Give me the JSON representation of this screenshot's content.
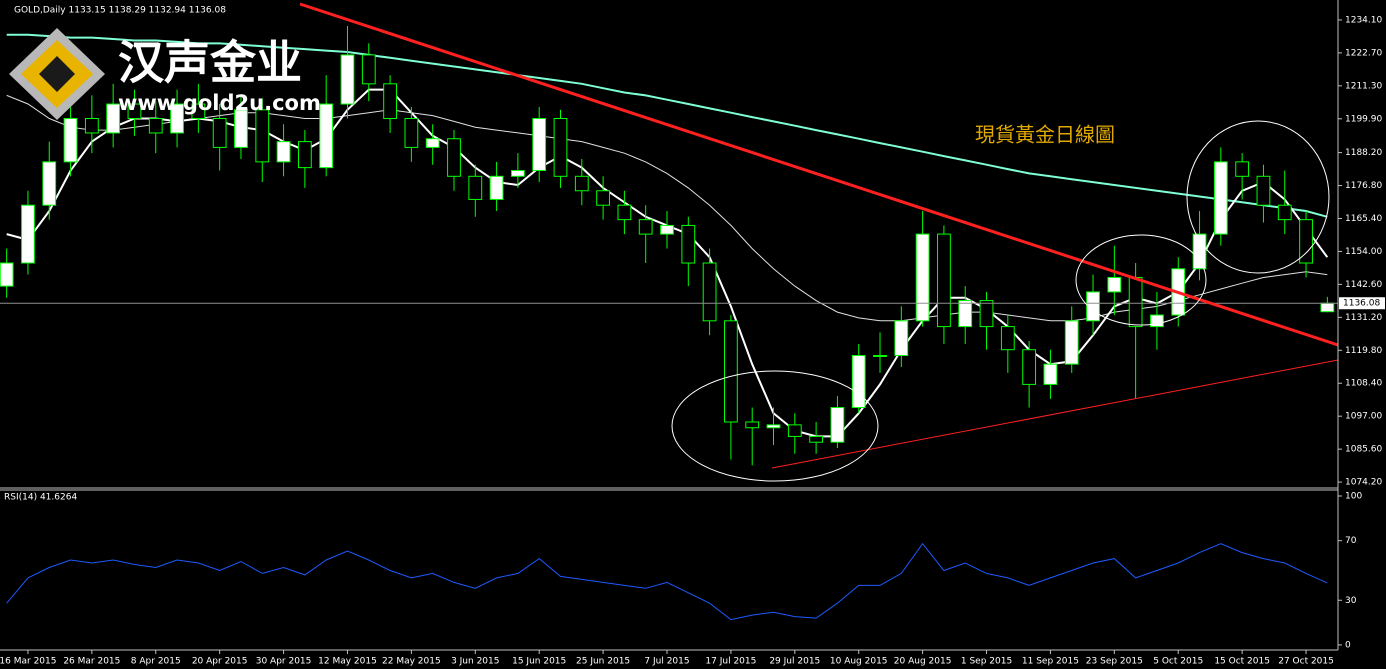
{
  "logo": {
    "name": "汉声金业",
    "url": "www.gold2u.com"
  },
  "chart_data": [
    {
      "type": "candlestick",
      "title": "GOLD,Daily  1133.15 1138.29 1132.94 1136.08",
      "annotation": "現貨黃金日線圖",
      "categories": [
        null,
        "16 Mar 2015",
        null,
        null,
        "26 Mar 2015",
        null,
        null,
        "8 Apr 2015",
        null,
        null,
        "20 Apr 2015",
        null,
        null,
        "30 Apr 2015",
        null,
        null,
        "12 May 2015",
        null,
        null,
        "22 May 2015",
        null,
        null,
        "3 Jun 2015",
        null,
        null,
        "15 Jun 2015",
        null,
        null,
        "25 Jun 2015",
        null,
        null,
        "7 Jul 2015",
        null,
        null,
        "17 Jul 2015",
        null,
        null,
        "29 Jul 2015",
        null,
        null,
        "10 Aug 2015",
        null,
        null,
        "20 Aug 2015",
        null,
        null,
        "1 Sep 2015",
        null,
        null,
        "11 Sep 2015",
        null,
        null,
        "23 Sep 2015",
        null,
        null,
        "5 Oct 2015",
        null,
        null,
        "15 Oct 2015",
        null,
        null,
        "27 Oct 2015",
        null
      ],
      "open": [
        1142,
        1150,
        1170,
        1185,
        1200,
        1195,
        1205,
        1200,
        1195,
        1205,
        1200,
        1190,
        1203,
        1185,
        1192,
        1183,
        1205,
        1222,
        1212,
        1200,
        1190,
        1193,
        1180,
        1172,
        1180,
        1182,
        1200,
        1180,
        1175,
        1170,
        1165,
        1160,
        1163,
        1150,
        1130,
        1095,
        1093,
        1094,
        1090,
        1088,
        1100,
        1118,
        1118,
        1130,
        1160,
        1128,
        1137,
        1128,
        1120,
        1108,
        1115,
        1130,
        1140,
        1145,
        1128,
        1132,
        1148,
        1160,
        1185,
        1180,
        1170,
        1165,
        1133.15
      ],
      "high": [
        1155,
        1175,
        1192,
        1210,
        1208,
        1212,
        1210,
        1206,
        1210,
        1212,
        1205,
        1208,
        1207,
        1198,
        1196,
        1215,
        1232,
        1226,
        1215,
        1204,
        1198,
        1196,
        1184,
        1185,
        1188,
        1204,
        1203,
        1186,
        1180,
        1175,
        1170,
        1168,
        1166,
        1155,
        1132,
        1100,
        1100,
        1098,
        1095,
        1104,
        1122,
        1126,
        1135,
        1168,
        1163,
        1142,
        1140,
        1132,
        1123,
        1120,
        1135,
        1146,
        1156,
        1150,
        1140,
        1152,
        1168,
        1190,
        1188,
        1184,
        1182,
        1168,
        1138.29
      ],
      "low": [
        1138,
        1146,
        1165,
        1180,
        1188,
        1190,
        1194,
        1188,
        1190,
        1195,
        1182,
        1186,
        1178,
        1180,
        1176,
        1180,
        1200,
        1206,
        1195,
        1185,
        1184,
        1175,
        1166,
        1168,
        1176,
        1178,
        1176,
        1170,
        1165,
        1160,
        1150,
        1155,
        1142,
        1125,
        1082,
        1080,
        1087,
        1084,
        1084,
        1086,
        1098,
        1112,
        1114,
        1128,
        1122,
        1122,
        1120,
        1112,
        1100,
        1103,
        1112,
        1125,
        1132,
        1103,
        1120,
        1128,
        1144,
        1156,
        1172,
        1164,
        1160,
        1145,
        1132.94
      ],
      "close": [
        1150,
        1170,
        1185,
        1200,
        1195,
        1205,
        1200,
        1195,
        1205,
        1200,
        1190,
        1203,
        1185,
        1192,
        1183,
        1205,
        1222,
        1212,
        1200,
        1190,
        1193,
        1180,
        1172,
        1180,
        1182,
        1200,
        1180,
        1175,
        1170,
        1165,
        1160,
        1163,
        1150,
        1130,
        1095,
        1093,
        1094,
        1090,
        1088,
        1100,
        1118,
        1118,
        1130,
        1160,
        1128,
        1137,
        1128,
        1120,
        1108,
        1115,
        1130,
        1140,
        1145,
        1128,
        1132,
        1148,
        1160,
        1185,
        1180,
        1170,
        1165,
        1150,
        1136.08
      ],
      "up_color": "#ffffff",
      "down_color": "#000000",
      "candle_outline": "#00ff00",
      "series": [
        {
          "color": "#7fffd4",
          "width": 2,
          "values": [
            1229,
            1229,
            1228.5,
            1228,
            1228,
            1227.5,
            1227,
            1227,
            1226.5,
            1226,
            1226,
            1225.5,
            1225,
            1224.5,
            1224,
            1223.5,
            1223,
            1222,
            1221,
            1220,
            1219,
            1218,
            1217,
            1216,
            1215,
            1214,
            1213,
            1212,
            1210.5,
            1209,
            1208,
            1206.5,
            1205,
            1203.5,
            1202,
            1200.5,
            1199,
            1197.5,
            1196,
            1194.5,
            1193,
            1191.5,
            1190,
            1188.5,
            1187,
            1185.5,
            1184,
            1182.5,
            1181,
            1180,
            1179,
            1178,
            1177,
            1176,
            1175,
            1174,
            1173,
            1172,
            1171,
            1170,
            1169,
            1168,
            1166
          ]
        },
        {
          "color": "#e0e0e0",
          "width": 1,
          "values": [
            1208,
            1205,
            1200,
            1197,
            1196,
            1196,
            1197,
            1198,
            1199,
            1200,
            1201,
            1202,
            1202,
            1201,
            1200,
            1200,
            1201,
            1202,
            1203,
            1202,
            1201,
            1199,
            1197,
            1196,
            1195,
            1194,
            1193,
            1192,
            1190,
            1188,
            1185,
            1181,
            1176,
            1170,
            1163,
            1155,
            1148,
            1142,
            1137,
            1133,
            1131,
            1130,
            1130,
            1131,
            1132,
            1133,
            1133,
            1132,
            1131,
            1130,
            1130,
            1131,
            1133,
            1134,
            1135,
            1137,
            1139,
            1141,
            1143,
            1145,
            1146,
            1147,
            1146
          ]
        },
        {
          "color": "#ffffff",
          "width": 2,
          "values": [
            1160,
            1158,
            1168,
            1182,
            1192,
            1197,
            1200,
            1200,
            1199,
            1200,
            1199,
            1197,
            1196,
            1192,
            1189,
            1193,
            1203,
            1210,
            1210,
            1202,
            1194,
            1190,
            1183,
            1178,
            1177,
            1183,
            1187,
            1183,
            1176,
            1171,
            1166,
            1163,
            1160,
            1152,
            1135,
            1115,
            1098,
            1092,
            1090,
            1090,
            1098,
            1108,
            1120,
            1130,
            1138,
            1138,
            1134,
            1128,
            1120,
            1115,
            1116,
            1125,
            1135,
            1138,
            1136,
            1140,
            1150,
            1165,
            1175,
            1178,
            1172,
            1162,
            1152
          ]
        }
      ],
      "last_price": 1136.08,
      "ylim": [
        1072.5,
        1241
      ],
      "yticks": [
        {
          "value": 1234.1,
          "label": "1234.10"
        },
        {
          "value": 1222.7,
          "label": "1222.70"
        },
        {
          "value": 1211.3,
          "label": "1211.30"
        },
        {
          "value": 1199.9,
          "label": "1199.90"
        },
        {
          "value": 1188.2,
          "label": "1188.20"
        },
        {
          "value": 1176.8,
          "label": "1176.80"
        },
        {
          "value": 1165.4,
          "label": "1165.40"
        },
        {
          "value": 1154.0,
          "label": "1154.00"
        },
        {
          "value": 1142.6,
          "label": "1142.60"
        },
        {
          "value": 1131.2,
          "label": "1131.20"
        },
        {
          "value": 1119.8,
          "label": "1119.80"
        },
        {
          "value": 1108.4,
          "label": "1108.40"
        },
        {
          "value": 1097.0,
          "label": "1097.00"
        },
        {
          "value": 1085.6,
          "label": "1085.60"
        },
        {
          "value": 1074.2,
          "label": "1074.20"
        }
      ],
      "grid": false
    },
    {
      "type": "line",
      "title": "RSI(14) 41.6264",
      "color": "#1e5aff",
      "values": [
        28,
        45,
        52,
        57,
        55,
        57,
        54,
        52,
        57,
        55,
        50,
        56,
        48,
        52,
        47,
        57,
        63,
        57,
        50,
        45,
        48,
        42,
        38,
        45,
        48,
        58,
        46,
        44,
        42,
        40,
        38,
        42,
        35,
        28,
        17,
        20,
        22,
        19,
        18,
        28,
        40,
        40,
        48,
        68,
        50,
        55,
        48,
        45,
        40,
        45,
        50,
        55,
        58,
        45,
        50,
        55,
        62,
        68,
        62,
        58,
        55,
        48,
        41.6264
      ],
      "ylim": [
        -3.4,
        104.7
      ],
      "yticks": [
        0,
        30,
        70,
        100
      ],
      "grid": false
    }
  ]
}
